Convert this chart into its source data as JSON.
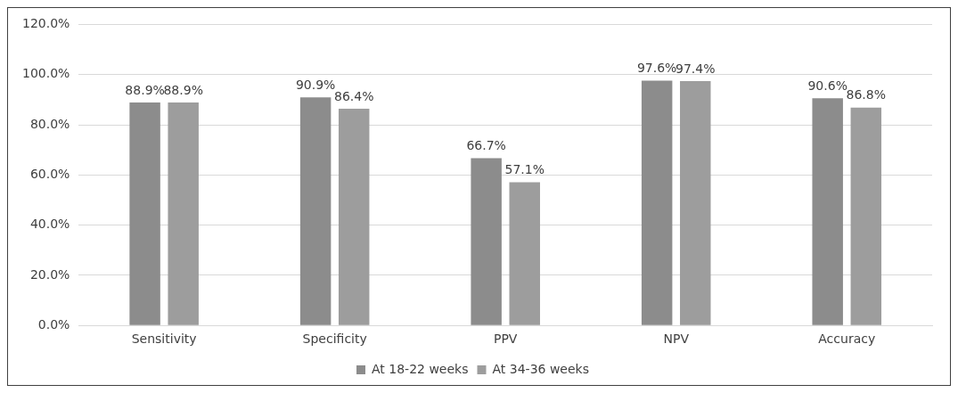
{
  "chart_data": {
    "type": "bar",
    "categories": [
      "Sensitivity",
      "Specificity",
      "PPV",
      "NPV",
      "Accuracy"
    ],
    "series": [
      {
        "name": "At 18-22 weeks",
        "color": "#8c8c8c",
        "values": [
          88.9,
          90.9,
          66.7,
          97.6,
          90.6
        ],
        "value_labels": [
          "88.9%",
          "90.9%",
          "66.7%",
          "97.6%",
          "90.6%"
        ]
      },
      {
        "name": "At 34-36 weeks",
        "color": "#9d9d9d",
        "values": [
          88.9,
          86.4,
          57.1,
          97.4,
          86.8
        ],
        "value_labels": [
          "88.9%",
          "86.4%",
          "57.1%",
          "97.4%",
          "86.8%"
        ]
      }
    ],
    "ylim": [
      0,
      120
    ],
    "yticks": [
      {
        "value": 0,
        "label": "0.0%"
      },
      {
        "value": 20,
        "label": "20.0%"
      },
      {
        "value": 40,
        "label": "40.0%"
      },
      {
        "value": 60,
        "label": "60.0%"
      },
      {
        "value": 80,
        "label": "80.0%"
      },
      {
        "value": 100,
        "label": "100.0%"
      },
      {
        "value": 120,
        "label": "120.0%"
      }
    ],
    "grid": "y",
    "legend": "bottom"
  }
}
